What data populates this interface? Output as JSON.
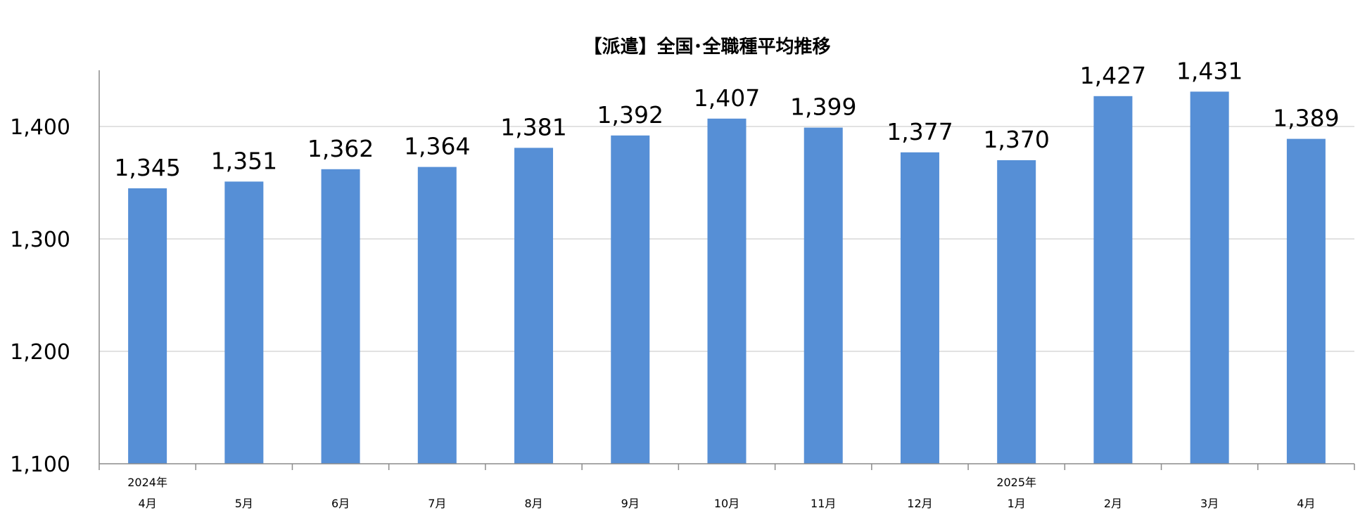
{
  "chart_data": {
    "type": "bar",
    "title": "【派遣】全国･全職種平均推移",
    "xlabel": "",
    "ylabel": "",
    "categories": [
      {
        "year": "2024年",
        "month": "4月"
      },
      {
        "year": "",
        "month": "5月"
      },
      {
        "year": "",
        "month": "6月"
      },
      {
        "year": "",
        "month": "7月"
      },
      {
        "year": "",
        "month": "8月"
      },
      {
        "year": "",
        "month": "9月"
      },
      {
        "year": "",
        "month": "10月"
      },
      {
        "year": "",
        "month": "11月"
      },
      {
        "year": "",
        "month": "12月"
      },
      {
        "year": "2025年",
        "month": "1月"
      },
      {
        "year": "",
        "month": "2月"
      },
      {
        "year": "",
        "month": "3月"
      },
      {
        "year": "",
        "month": "4月"
      }
    ],
    "values": [
      1345,
      1351,
      1362,
      1364,
      1381,
      1392,
      1407,
      1399,
      1377,
      1370,
      1427,
      1431,
      1389
    ],
    "value_labels": [
      "1,345",
      "1,351",
      "1,362",
      "1,364",
      "1,381",
      "1,392",
      "1,407",
      "1,399",
      "1,377",
      "1,370",
      "1,427",
      "1,431",
      "1,389"
    ],
    "ylim": [
      1100,
      1450
    ],
    "yticks": [
      1100,
      1200,
      1300,
      1400
    ],
    "ytick_labels": [
      "1,100",
      "1,200",
      "1,300",
      "1,400"
    ],
    "grid": true,
    "legend": "none",
    "bar_color": "#568fd6",
    "grid_color": "#d9d9d9",
    "axis_color": "#8c8c8c"
  }
}
